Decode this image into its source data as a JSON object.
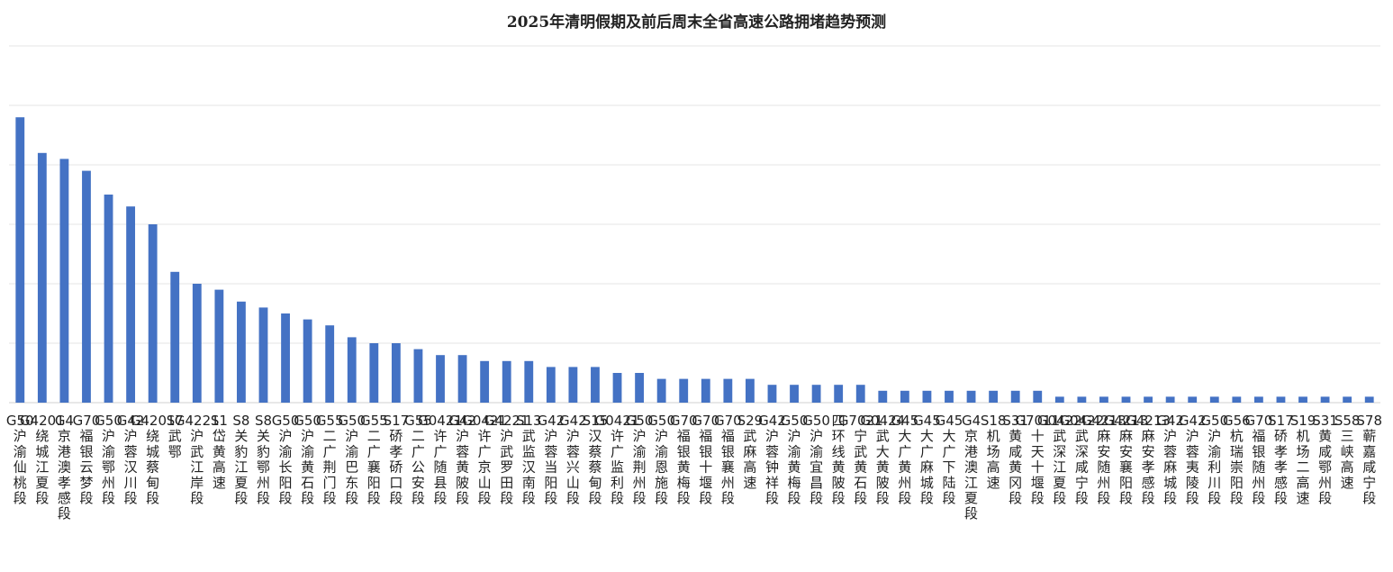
{
  "chart_data": {
    "type": "bar",
    "title": "2025年清明假期及前后周末全省高速公路拥堵趋势预测",
    "xlabel": "",
    "ylabel": "",
    "ylim": [
      0,
      60
    ],
    "grid": true,
    "legend": "none",
    "bar_color": "#4472C4",
    "categories": [
      "G50沪渝仙桃段",
      "G4201绕城江夏段",
      "G4京港澳孝感段",
      "G70福银云梦段",
      "G50沪渝鄂州段",
      "G42沪蓉汉川段",
      "G4201绕城蔡甸段",
      "S7武鄂",
      "G4221沪武江岸段",
      "S1岱黄高速",
      "S8关豹江夏段",
      "S8关豹鄂州段",
      "G50沪渝长阳段",
      "G50沪渝黄石段",
      "G55二广荆门段",
      "G50沪渝巴东段",
      "G55二广襄阳段",
      "S17硚孝硚口段",
      "G55二广公安段",
      "G0421许广随县段",
      "G42沪蓉黄陂段",
      "G0421许广京山段",
      "G4221沪武罗田段",
      "S13武监汉南段",
      "G42沪蓉当阳段",
      "G42沪蓉兴山段",
      "S15汉蔡蔡甸段",
      "G0421许广监利段",
      "G50沪渝荆州段",
      "G50沪渝恩施段",
      "G70福银黄梅段",
      "G70福银十堰段",
      "G70福银襄州段",
      "S29武麻高速",
      "G42沪蓉钟祥段",
      "G50沪渝黄梅段",
      "G50沪渝宜昌段",
      "四环线黄陂段",
      "G7021宁武黄石段",
      "G0424武大黄陂段",
      "G45大广黄州段",
      "G45大广麻城段",
      "G45大广下陆段",
      "G4京港澳江夏段",
      "S18机场高速",
      "S31黄咸黄冈段",
      "G7011十天十堰段",
      "G0422武深江夏段",
      "G0422武深咸宁段",
      "G4213麻安随州段",
      "G4213麻安襄阳段",
      "G4213麻安孝感段",
      "G42沪蓉麻城段",
      "G42沪蓉夷陵段",
      "G50沪渝利川段",
      "G56杭瑞崇阳段",
      "G70福银随州段",
      "S17硚孝孝感段",
      "S19机场二高速",
      "S31黄咸鄂州段",
      "S58三峡高速",
      "S78蕲嘉咸宁段"
    ],
    "values": [
      48,
      42,
      41,
      39,
      35,
      33,
      30,
      22,
      20,
      19,
      17,
      16,
      15,
      14,
      13,
      11,
      10,
      10,
      9,
      8,
      8,
      7,
      7,
      7,
      6,
      6,
      6,
      5,
      5,
      4,
      4,
      4,
      4,
      4,
      3,
      3,
      3,
      3,
      3,
      2,
      2,
      2,
      2,
      2,
      2,
      2,
      2,
      1,
      1,
      1,
      1,
      1,
      1,
      1,
      1,
      1,
      1,
      1,
      1,
      1,
      1,
      1
    ]
  }
}
